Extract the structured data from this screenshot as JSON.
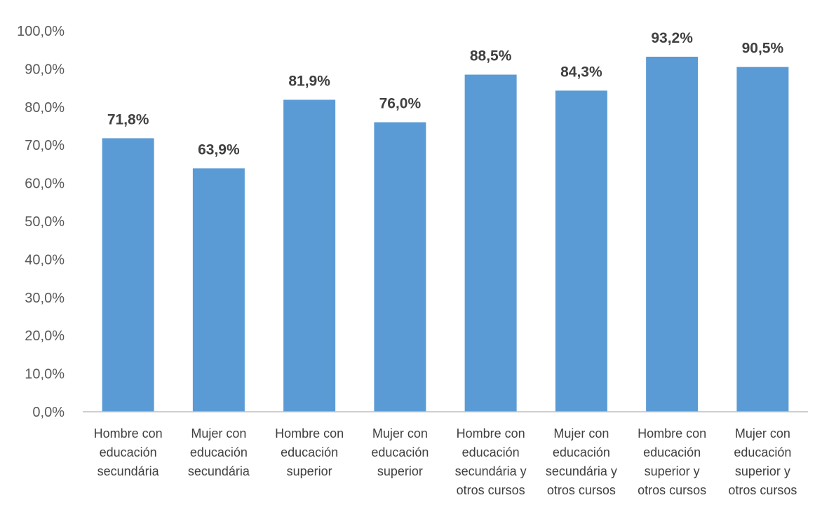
{
  "chart_data": {
    "type": "bar",
    "categories": [
      [
        "Hombre con",
        "educación",
        "secundária"
      ],
      [
        "Mujer con",
        "educación",
        "secundária"
      ],
      [
        "Hombre con",
        "educación",
        "superior"
      ],
      [
        "Mujer con",
        "educación",
        "superior"
      ],
      [
        "Hombre con",
        "educación",
        "secundária y",
        "otros cursos"
      ],
      [
        "Mujer con",
        "educación",
        "secundária y",
        "otros cursos"
      ],
      [
        "Hombre con",
        "educación",
        "superior y",
        "otros cursos"
      ],
      [
        "Mujer con",
        "educación",
        "superior y",
        "otros cursos"
      ]
    ],
    "values": [
      71.8,
      63.9,
      81.9,
      76.0,
      88.5,
      84.3,
      93.2,
      90.5
    ],
    "value_labels": [
      "71,8%",
      "63,9%",
      "81,9%",
      "76,0%",
      "88,5%",
      "84,3%",
      "93,2%",
      "90,5%"
    ],
    "y_ticks": [
      0,
      10,
      20,
      30,
      40,
      50,
      60,
      70,
      80,
      90,
      100
    ],
    "y_tick_labels": [
      "0,0%",
      "10,0%",
      "20,0%",
      "30,0%",
      "40,0%",
      "50,0%",
      "60,0%",
      "70,0%",
      "80,0%",
      "90,0%",
      "100,0%"
    ],
    "ylim": [
      0,
      100
    ],
    "grid": false,
    "legend": "none",
    "bar_color": "#5b9bd5"
  }
}
